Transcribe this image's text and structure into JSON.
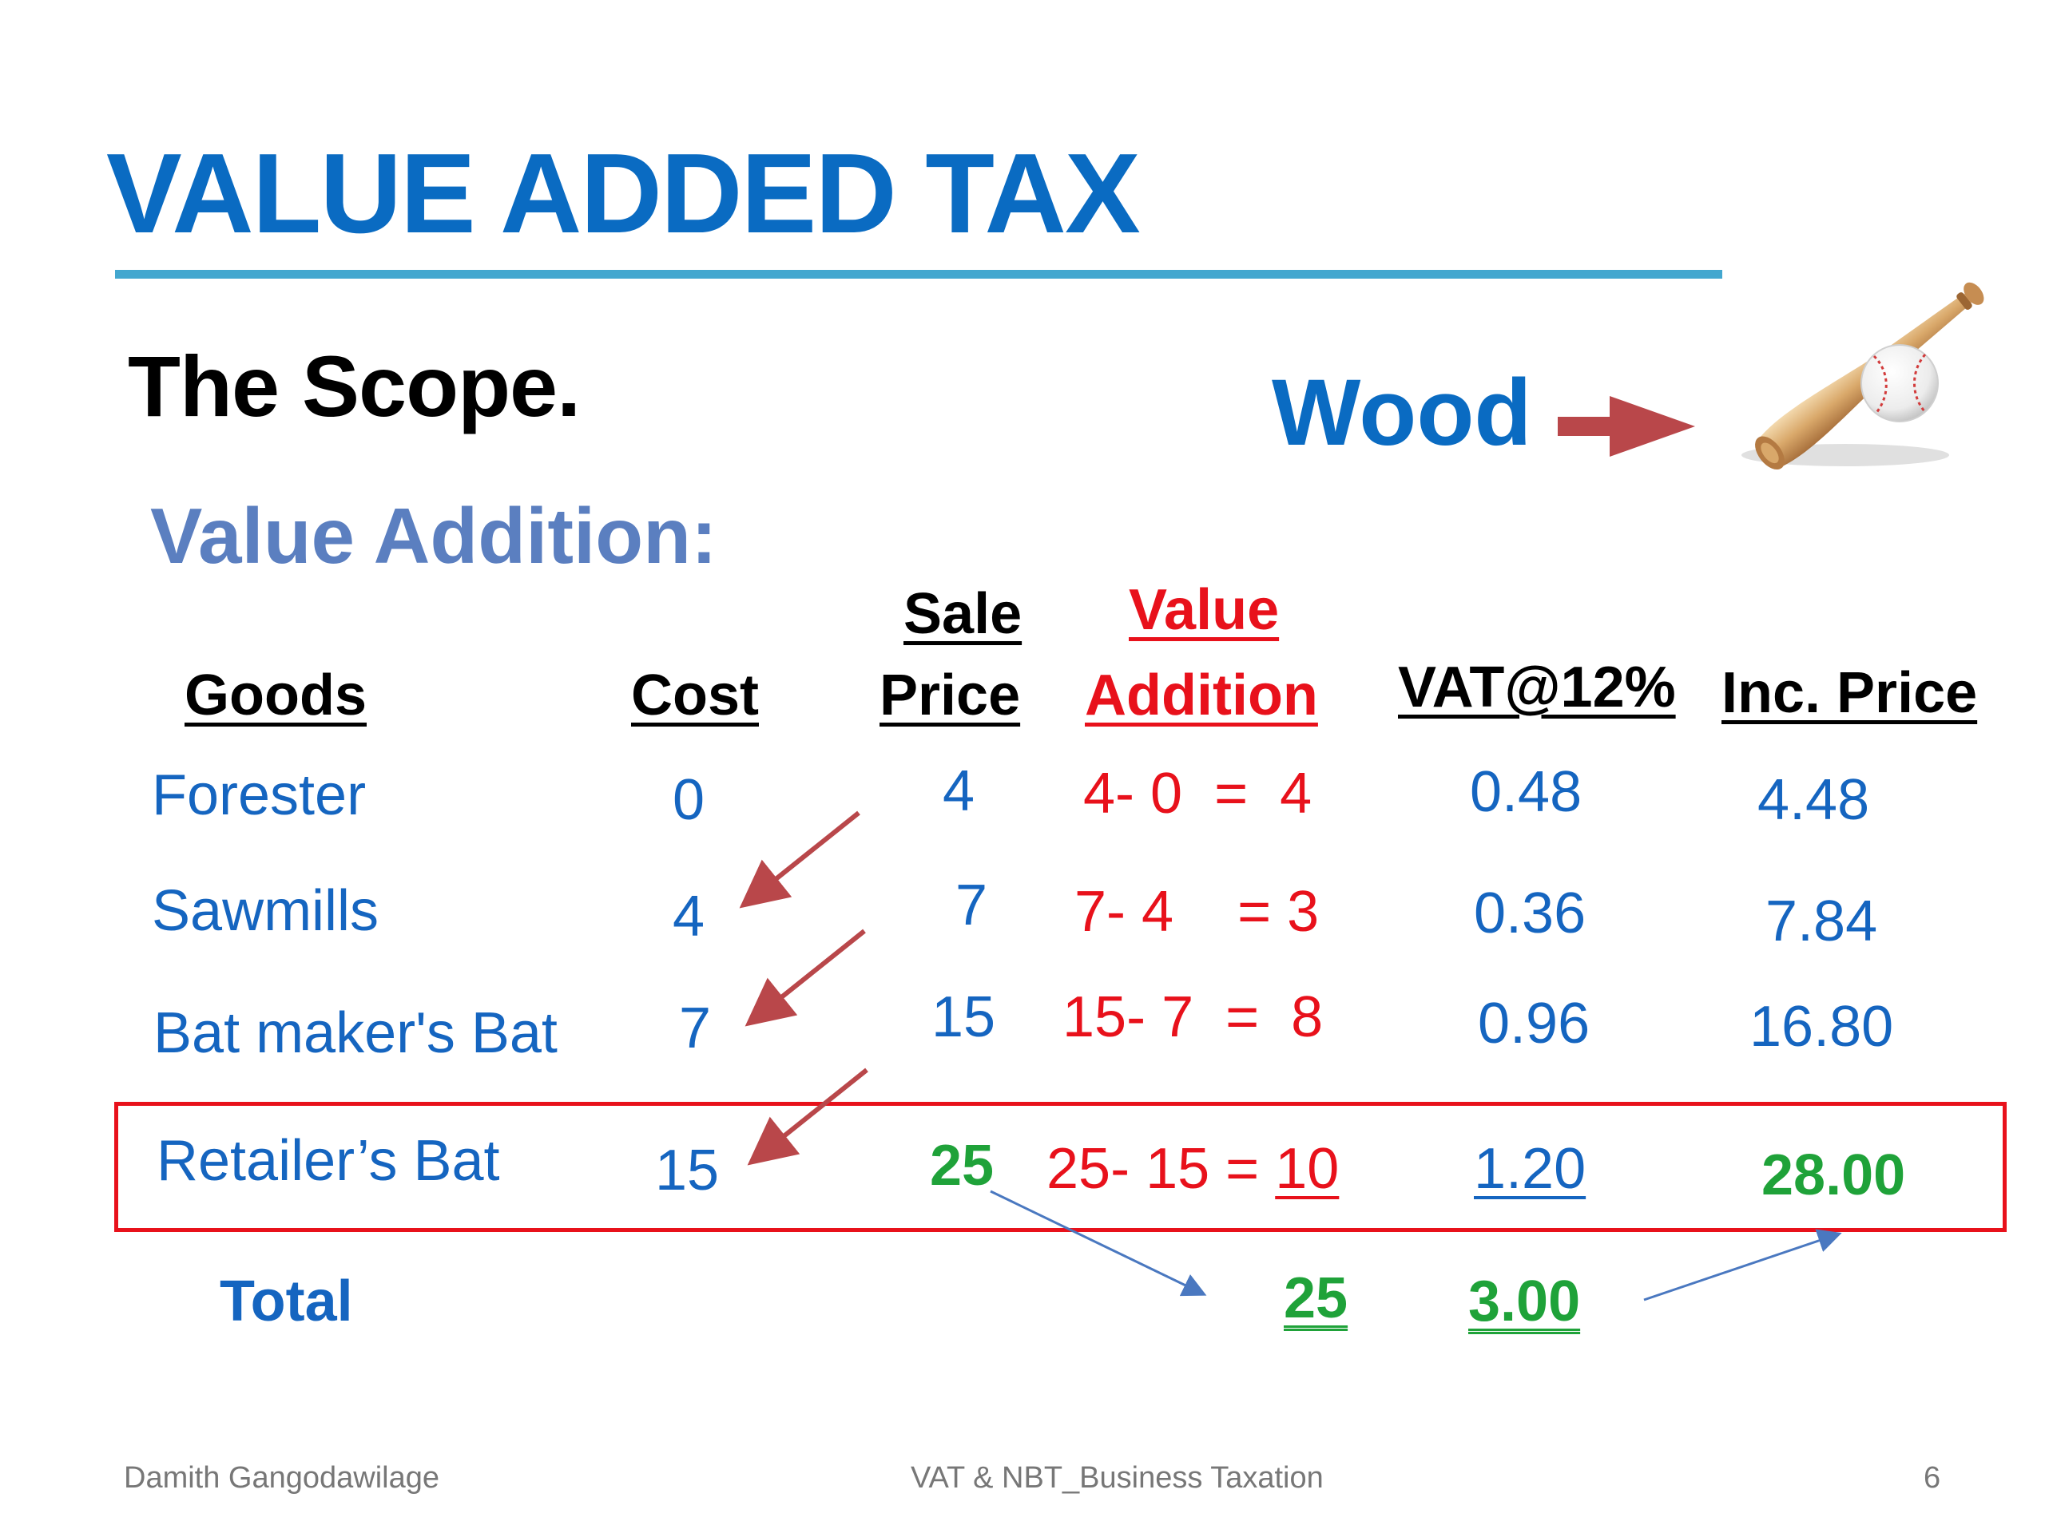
{
  "slide": {
    "title": "VALUE ADDED TAX",
    "subtitle": "The Scope.",
    "section_label": "Value Addition:",
    "product_label": "Wood",
    "product_icon": "baseball-bat-and-ball-icon"
  },
  "table": {
    "headers": {
      "goods": "Goods",
      "cost": "Cost",
      "sale_line1": "Sale",
      "sale_line2": "Price",
      "value_line1": "Value",
      "value_line2": "Addition",
      "vat": "VAT@12%",
      "inc_price": "Inc. Price"
    },
    "rows": [
      {
        "goods": "Forester",
        "cost": "0",
        "sale": "4",
        "value_addition": "4- 0  =  4",
        "vat": "0.48",
        "inc_price": "4.48"
      },
      {
        "goods": "Sawmills",
        "cost": "4",
        "sale": "7",
        "value_addition": "7- 4    = 3",
        "vat": "0.36",
        "inc_price": "7.84"
      },
      {
        "goods": "Bat maker's Bat",
        "cost": "7",
        "sale": "15",
        "value_addition": "15- 7  =  8",
        "vat": "0.96",
        "inc_price": "16.80"
      },
      {
        "goods": "Retailer’s Bat",
        "cost": "15",
        "sale": "25",
        "value_addition_expr": "25- 15 = ",
        "value_addition_result": "10",
        "vat": "1.20",
        "inc_price": "28.00"
      }
    ],
    "total": {
      "label": "Total",
      "value_addition": "25",
      "vat": "3.00"
    }
  },
  "colors": {
    "title": "#0a6bc2",
    "rule": "#43a7cf",
    "text_blue": "#1565c0",
    "value_red": "#e8111b",
    "highlight_green": "#1fa239",
    "arrow_brown": "#b9474a",
    "arrow_blue": "#4a78c0"
  },
  "footer": {
    "author": "Damith Gangodawilage",
    "course": "VAT & NBT_Business Taxation",
    "page": "6"
  }
}
